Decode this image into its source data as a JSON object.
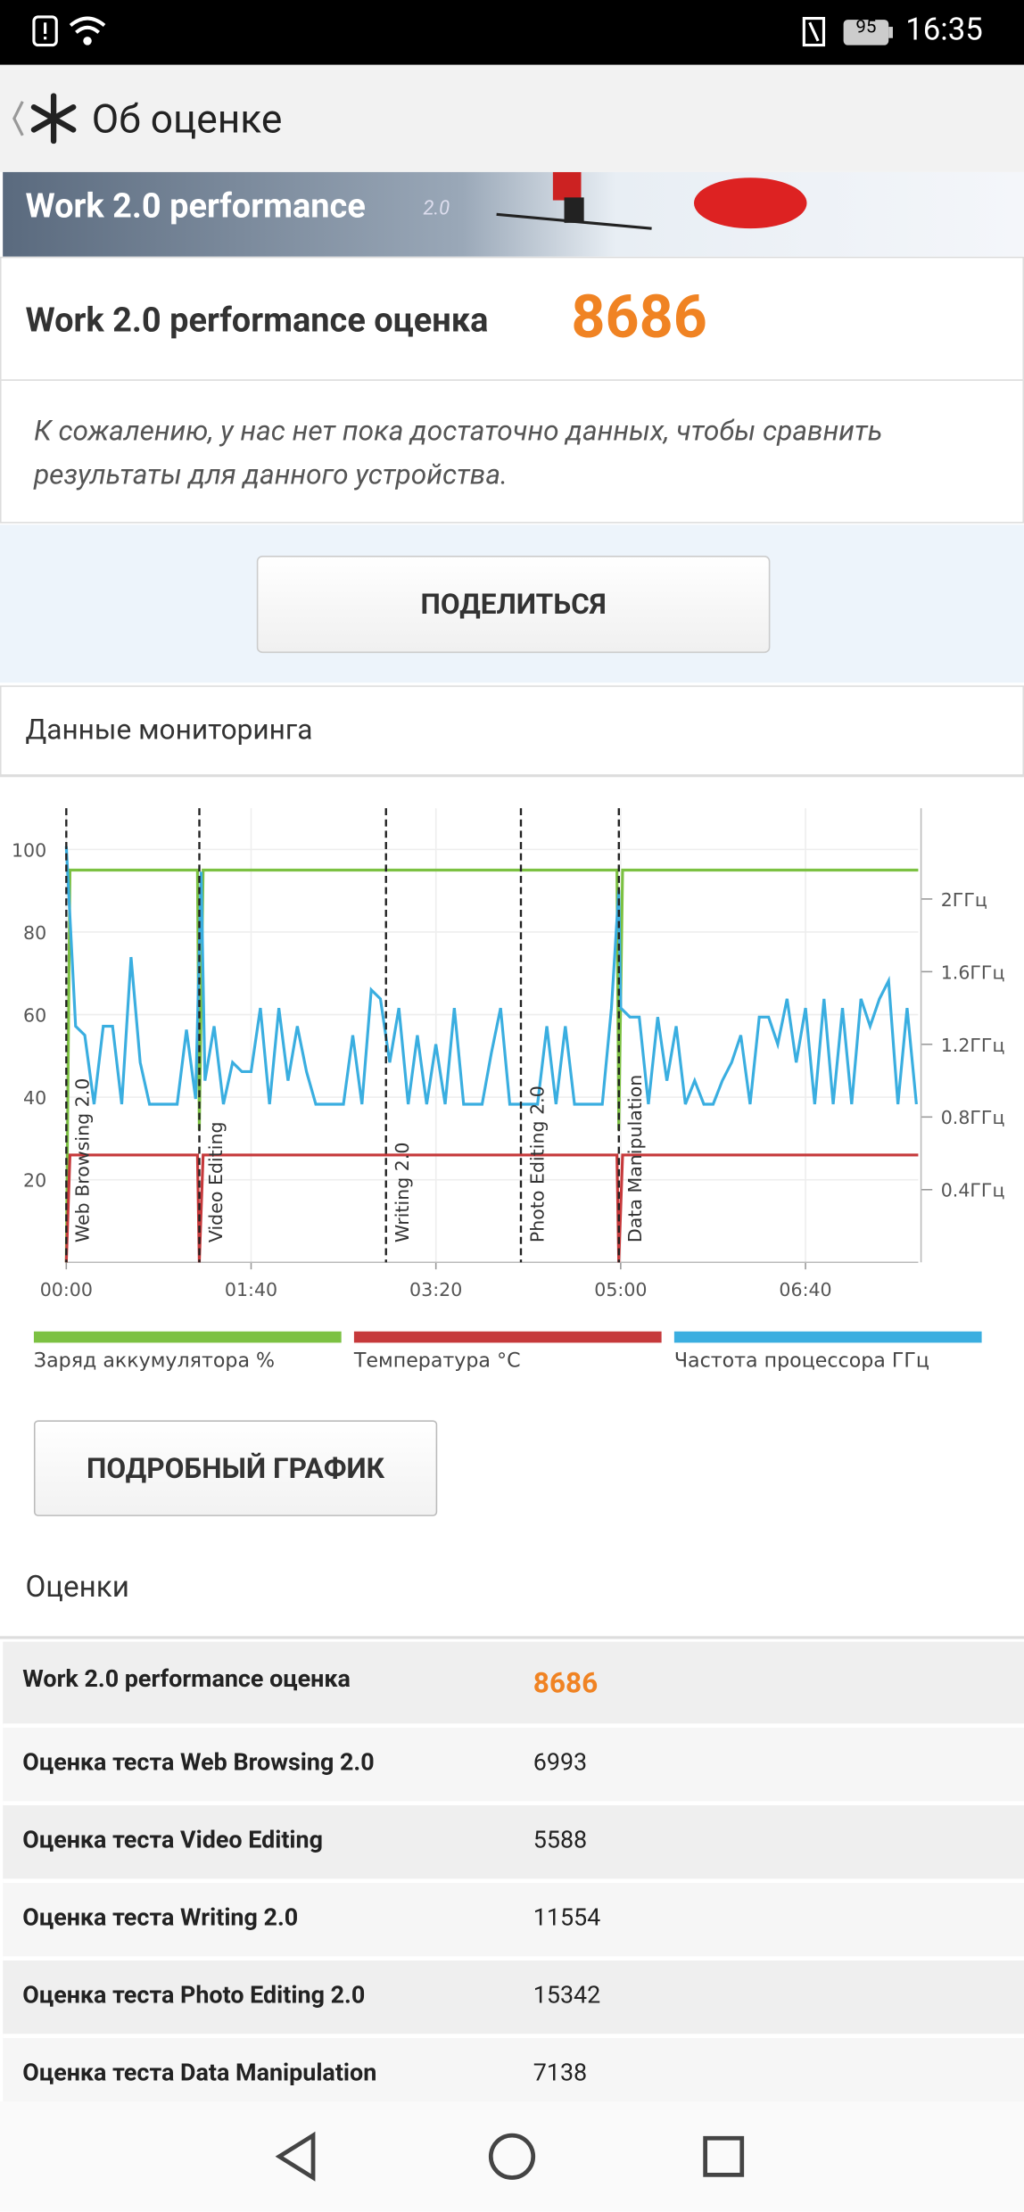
{
  "status_bar": {
    "battery": "95",
    "time": "16:35"
  },
  "header": {
    "title": "Об оценке"
  },
  "banner": {
    "title": "Work 2.0 performance",
    "version": "2.0"
  },
  "score": {
    "label": "Work 2.0 performance оценка",
    "value": "8686"
  },
  "message": "К сожалению, у нас нет пока достаточно данных, чтобы сравнить результаты для данного устройства.",
  "share_button": "ПОДЕЛИТЬСЯ",
  "monitoring": {
    "title": "Данные мониторинга"
  },
  "chart_data": {
    "type": "line",
    "xlim": [
      0,
      461
    ],
    "xticks": [
      {
        "value": 0,
        "label": "00:00"
      },
      {
        "value": 100,
        "label": "01:40"
      },
      {
        "value": 200,
        "label": "03:20"
      },
      {
        "value": 300,
        "label": "05:00"
      },
      {
        "value": 400,
        "label": "06:40"
      }
    ],
    "ylim": [
      0,
      110
    ],
    "yticks": [
      20,
      40,
      60,
      80,
      100
    ],
    "y2lim": [
      0,
      2.5
    ],
    "y2ticks": [
      {
        "value": 0.4,
        "label": "0.4ГГц"
      },
      {
        "value": 0.8,
        "label": "0.8ГГц"
      },
      {
        "value": 1.2,
        "label": "1.2ГГц"
      },
      {
        "value": 1.6,
        "label": "1.6ГГц"
      },
      {
        "value": 2,
        "label": "2ГГц"
      }
    ],
    "grid": true,
    "markers": [
      {
        "x": 0,
        "label": "Web Browsing 2.0"
      },
      {
        "x": 72,
        "label": "Video Editing"
      },
      {
        "x": 173,
        "label": "Writing 2.0"
      },
      {
        "x": 246,
        "label": "Photo Editing 2.0"
      },
      {
        "x": 299,
        "label": "Data Manipulation"
      }
    ],
    "series": [
      {
        "name": "Заряд аккумулятора %",
        "color": "#7cc142",
        "x": [
          0,
          2,
          71,
          72,
          74,
          298,
          299,
          301,
          461
        ],
        "values": [
          0,
          95,
          95,
          32,
          95,
          95,
          32,
          95,
          95
        ]
      },
      {
        "name": "Температура °C",
        "color": "#c6393b",
        "x": [
          0,
          2,
          71,
          72,
          74,
          298,
          299,
          301,
          461
        ],
        "values": [
          0,
          26,
          26,
          0,
          26,
          26,
          0,
          26,
          26
        ]
      },
      {
        "name": "Частота процессора ГГц",
        "color": "#3aaee0",
        "axis": "y2",
        "x": [
          0,
          5,
          10,
          15,
          20,
          25,
          30,
          35,
          40,
          45,
          50,
          55,
          60,
          65,
          70,
          73,
          75,
          80,
          85,
          90,
          95,
          100,
          105,
          110,
          115,
          120,
          125,
          130,
          135,
          140,
          145,
          150,
          155,
          160,
          165,
          170,
          175,
          180,
          185,
          190,
          195,
          200,
          205,
          210,
          215,
          220,
          225,
          230,
          235,
          240,
          245,
          250,
          255,
          260,
          265,
          270,
          275,
          280,
          285,
          290,
          295,
          299,
          300,
          305,
          310,
          315,
          320,
          325,
          330,
          335,
          340,
          345,
          350,
          355,
          360,
          365,
          370,
          375,
          380,
          385,
          390,
          395,
          400,
          405,
          410,
          415,
          420,
          425,
          430,
          435,
          440,
          445,
          450,
          455,
          460
        ],
        "values": [
          2.29,
          1.3,
          1.25,
          0.87,
          1.3,
          1.3,
          0.87,
          1.68,
          1.1,
          0.87,
          0.87,
          0.87,
          0.87,
          1.28,
          0.9,
          2.15,
          1.0,
          1.3,
          0.87,
          1.1,
          1.05,
          1.05,
          1.4,
          0.87,
          1.4,
          1.0,
          1.3,
          1.05,
          0.87,
          0.87,
          0.87,
          0.87,
          1.25,
          0.87,
          1.5,
          1.45,
          1.1,
          1.4,
          0.87,
          1.25,
          0.87,
          1.2,
          0.87,
          1.4,
          0.87,
          0.87,
          0.87,
          1.15,
          1.4,
          0.87,
          0.87,
          0.87,
          0.87,
          1.3,
          0.87,
          1.3,
          0.87,
          0.87,
          0.87,
          0.87,
          1.4,
          2.05,
          1.4,
          1.35,
          1.35,
          0.87,
          1.35,
          1.0,
          1.3,
          0.87,
          1.0,
          0.87,
          0.87,
          1.0,
          1.1,
          1.25,
          0.87,
          1.35,
          1.35,
          1.2,
          1.45,
          1.1,
          1.4,
          0.87,
          1.45,
          0.87,
          1.4,
          0.87,
          1.45,
          1.3,
          1.45,
          1.55,
          0.87,
          1.4,
          0.87
        ]
      }
    ]
  },
  "detail_button": "ПОДРОБНЫЙ ГРАФИК",
  "scores": {
    "title": "Оценки",
    "rows": [
      [
        "Work 2.0 performance оценка",
        "8686"
      ],
      [
        "Оценка теста Web Browsing 2.0",
        "6993"
      ],
      [
        "Оценка теста Video Editing",
        "5588"
      ],
      [
        "Оценка теста Writing 2.0",
        "11554"
      ],
      [
        "Оценка теста Photo Editing 2.0",
        "15342"
      ],
      [
        "Оценка теста Data Manipulation",
        "7138"
      ]
    ]
  }
}
